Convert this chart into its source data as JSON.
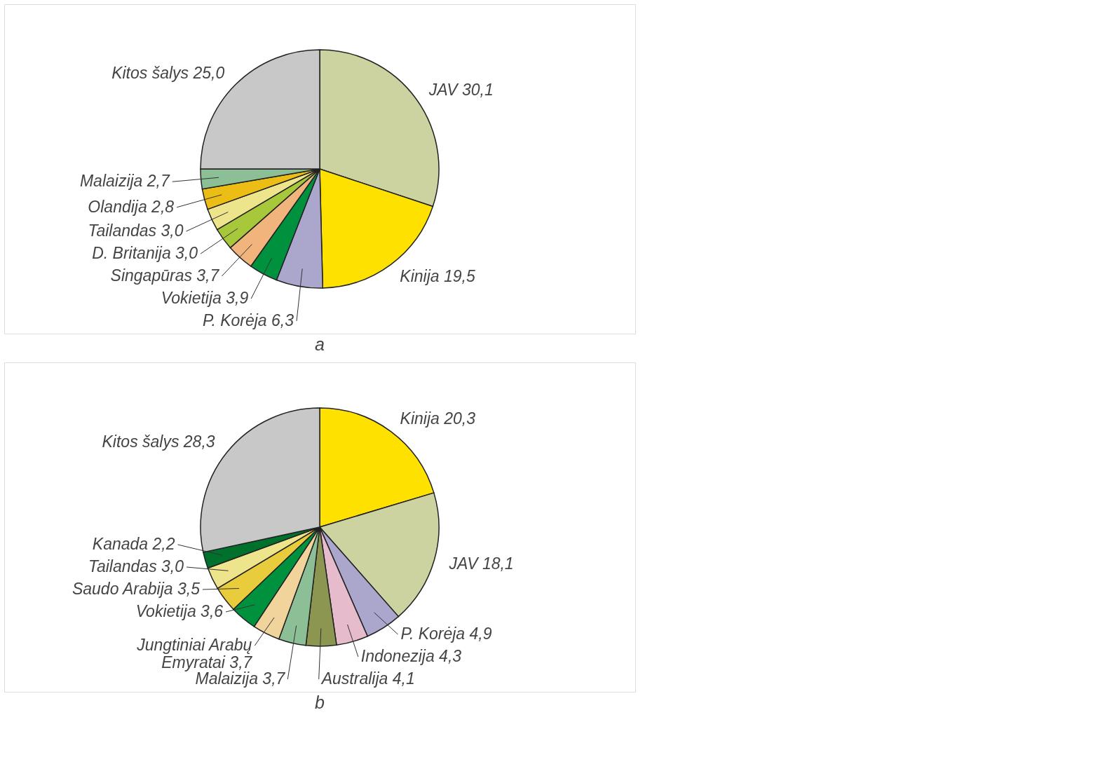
{
  "chart_data": [
    {
      "type": "pie",
      "title": "a",
      "categories": [
        "JAV",
        "Kinija",
        "P. Korėja",
        "Vokietija",
        "Singapūras",
        "D. Britanija",
        "Tailandas",
        "Olandija",
        "Malaizija",
        "Kitos šalys"
      ],
      "values": [
        30.1,
        19.5,
        6.3,
        3.9,
        3.7,
        3.0,
        3.0,
        2.8,
        2.7,
        25.0
      ],
      "value_labels": [
        "30,1",
        "19,5",
        "6,3",
        "3,9",
        "3,7",
        "3,0",
        "3,0",
        "2,8",
        "2,7",
        "25,0"
      ],
      "colors": [
        "#cdd3a0",
        "#ffe100",
        "#aaa6cc",
        "#00913f",
        "#f0b47c",
        "#a8c83c",
        "#ede48c",
        "#ecbd14",
        "#8cbf96",
        "#c8c8c8"
      ]
    },
    {
      "type": "pie",
      "title": "b",
      "categories": [
        "Kinija",
        "JAV",
        "P. Korėja",
        "Indonezija",
        "Australija",
        "Malaizija",
        "Jungtiniai Arabų Emyratai",
        "Vokietija",
        "Saudo Arabija",
        "Tailandas",
        "Kanada",
        "Kitos šalys"
      ],
      "values": [
        20.3,
        18.1,
        4.9,
        4.3,
        4.1,
        3.7,
        3.7,
        3.6,
        3.5,
        3.0,
        2.2,
        28.3
      ],
      "value_labels": [
        "20,3",
        "18,1",
        "4,9",
        "4,3",
        "4,1",
        "3,7",
        "3,7",
        "3,6",
        "3,5",
        "3,0",
        "2,2",
        "28,3"
      ],
      "colors": [
        "#ffe100",
        "#cdd3a0",
        "#aaa6cc",
        "#e6bccc",
        "#8c9650",
        "#8cbf96",
        "#f0d49c",
        "#00913f",
        "#e8cc3c",
        "#ede48c",
        "#00702d",
        "#c8c8c8"
      ]
    }
  ]
}
